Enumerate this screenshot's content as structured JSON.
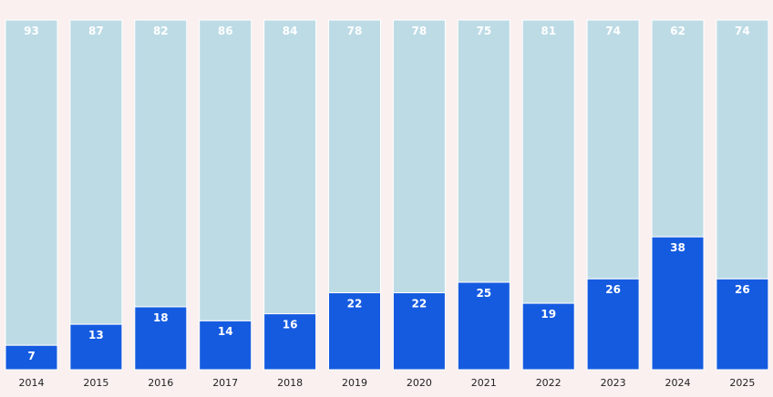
{
  "chart_data": {
    "type": "bar",
    "stacked": true,
    "percent_stacked": true,
    "categories": [
      "2014",
      "2015",
      "2016",
      "2017",
      "2018",
      "2019",
      "2020",
      "2021",
      "2022",
      "2023",
      "2024",
      "2025"
    ],
    "series": [
      {
        "values": [
          7,
          13,
          18,
          14,
          16,
          22,
          22,
          25,
          19,
          26,
          38,
          26
        ],
        "color": "#155be0",
        "label_color": "#ffffff"
      },
      {
        "values": [
          93,
          87,
          82,
          86,
          84,
          78,
          78,
          75,
          81,
          74,
          62,
          74
        ],
        "color": "#bddbe5",
        "label_color": "#ffffff"
      }
    ],
    "ylim": [
      0,
      100
    ],
    "grid": false,
    "legend": "none",
    "title": "",
    "xlabel": "",
    "ylabel": ""
  },
  "colors": {
    "background": "#f9f0ef",
    "tick_text": "#222222"
  }
}
